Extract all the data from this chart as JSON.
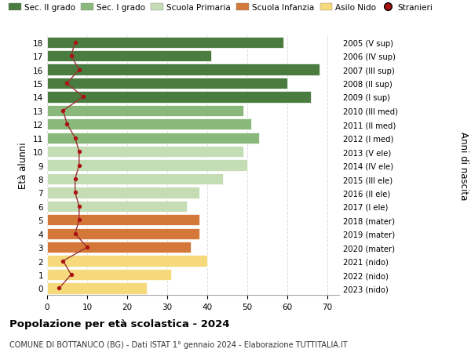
{
  "ages": [
    0,
    1,
    2,
    3,
    4,
    5,
    6,
    7,
    8,
    9,
    10,
    11,
    12,
    13,
    14,
    15,
    16,
    17,
    18
  ],
  "bar_values": [
    25,
    31,
    40,
    36,
    38,
    38,
    35,
    38,
    44,
    50,
    49,
    53,
    51,
    49,
    66,
    60,
    68,
    41,
    59
  ],
  "stranieri": [
    3,
    6,
    4,
    10,
    7,
    8,
    8,
    7,
    7,
    8,
    8,
    7,
    5,
    4,
    9,
    5,
    8,
    6,
    7
  ],
  "right_labels": [
    "2023 (nido)",
    "2022 (nido)",
    "2021 (nido)",
    "2020 (mater)",
    "2019 (mater)",
    "2018 (mater)",
    "2017 (I ele)",
    "2016 (II ele)",
    "2015 (III ele)",
    "2014 (IV ele)",
    "2013 (V ele)",
    "2012 (I med)",
    "2011 (II med)",
    "2010 (III med)",
    "2009 (I sup)",
    "2008 (II sup)",
    "2007 (III sup)",
    "2006 (IV sup)",
    "2005 (V sup)"
  ],
  "bar_colors": [
    "#f5d97a",
    "#f5d97a",
    "#f5d97a",
    "#d4783a",
    "#d4783a",
    "#d4783a",
    "#c5ddb5",
    "#c5ddb5",
    "#c5ddb5",
    "#c5ddb5",
    "#c5ddb5",
    "#8ab87a",
    "#8ab87a",
    "#8ab87a",
    "#4a7c3f",
    "#4a7c3f",
    "#4a7c3f",
    "#4a7c3f",
    "#4a7c3f"
  ],
  "stranieri_color": "#aa1111",
  "stranieri_line_color": "#993333",
  "title": "Popolazione per età scolastica - 2024",
  "subtitle": "COMUNE DI BOTTANUCO (BG) - Dati ISTAT 1° gennaio 2024 - Elaborazione TUTTITALIA.IT",
  "ylabel": "Età alunni",
  "right_ylabel": "Anni di nascita",
  "xlim": [
    0,
    73
  ],
  "xticks": [
    0,
    10,
    20,
    30,
    40,
    50,
    60,
    70
  ],
  "legend_labels": [
    "Sec. II grado",
    "Sec. I grado",
    "Scuola Primaria",
    "Scuola Infanzia",
    "Asilo Nido",
    "Stranieri"
  ],
  "legend_colors": [
    "#4a7c3f",
    "#8ab87a",
    "#c5ddb5",
    "#d4783a",
    "#f5d97a",
    "#aa1111"
  ],
  "bg_color": "#ffffff",
  "grid_color": "#dddddd"
}
